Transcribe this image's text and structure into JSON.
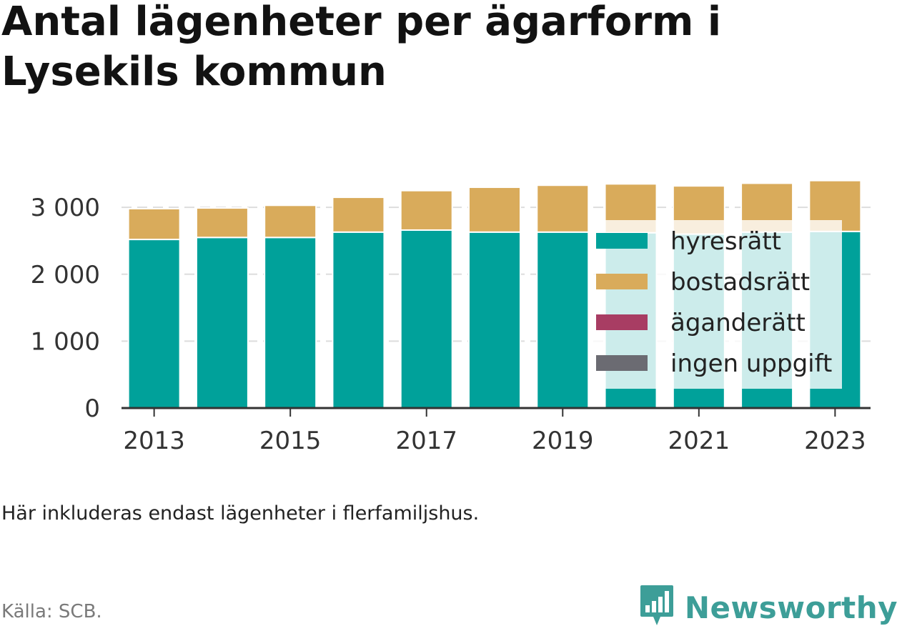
{
  "title": "Antal lägenheter per ägarform i Lysekils kommun",
  "note": "Här inkluderas endast lägenheter i flerfamiljshus.",
  "source": "Källa: SCB.",
  "brand": {
    "name": "Newsworthy",
    "icon": "bar-chart-speech-bubble-icon",
    "color": "#3d9e98"
  },
  "colors": {
    "hyresratt": "#00a19a",
    "bostadsratt": "#d9ab5b",
    "aganderatt": "#a83d63",
    "ingen_uppgift": "#6b6b72",
    "gridline": "#dddddd",
    "axis": "#333333"
  },
  "chart_data": {
    "type": "bar",
    "stacked": true,
    "categories": [
      "2013",
      "2014",
      "2015",
      "2016",
      "2017",
      "2018",
      "2019",
      "2020",
      "2021",
      "2022",
      "2023"
    ],
    "x_tick_labels": [
      "2013",
      "2015",
      "2017",
      "2019",
      "2021",
      "2023"
    ],
    "series": [
      {
        "name": "hyresrätt",
        "key": "hyresratt",
        "values": [
          2520,
          2550,
          2550,
          2630,
          2660,
          2630,
          2630,
          2620,
          2600,
          2630,
          2640
        ]
      },
      {
        "name": "bostadsrätt",
        "key": "bostadsratt",
        "values": [
          460,
          440,
          480,
          520,
          590,
          670,
          700,
          730,
          720,
          730,
          760
        ]
      },
      {
        "name": "äganderätt",
        "key": "aganderatt",
        "values": [
          0,
          0,
          0,
          0,
          0,
          0,
          0,
          0,
          0,
          0,
          0
        ]
      },
      {
        "name": "ingen uppgift",
        "key": "ingen_uppgift",
        "values": [
          0,
          0,
          0,
          0,
          0,
          0,
          0,
          0,
          0,
          0,
          0
        ]
      }
    ],
    "y_ticks": [
      0,
      1000,
      2000,
      3000
    ],
    "y_tick_labels": [
      "0",
      "1 000",
      "2 000",
      "3 000"
    ],
    "ylim": [
      0,
      3450
    ],
    "grid": true,
    "legend_position": "right, overlaying the chart"
  }
}
